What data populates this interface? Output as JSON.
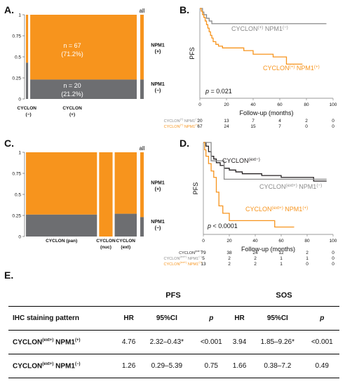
{
  "colors": {
    "orange": "#f7941d",
    "gray": "#6d6e71",
    "light_gray": "#a7a9ac",
    "black": "#231f20"
  },
  "panel_labels": {
    "a": "A.",
    "b": "B.",
    "c": "C.",
    "d": "D.",
    "e": "E."
  },
  "chart_data": [
    {
      "id": "A",
      "type": "mosaic",
      "ylim": [
        0,
        1
      ],
      "yticks": [
        "0",
        "0.25",
        "0.5",
        "0.75",
        "1"
      ],
      "columns": [
        {
          "label": "CYCLON",
          "sub": "(−)",
          "width_share": 0.02,
          "npm1_neg_fraction": 0.43
        },
        {
          "label": "CYCLON",
          "sub": "(+)",
          "width_share": 0.98,
          "npm1_neg_fraction": 0.23
        }
      ],
      "all_label": "all",
      "all_npm1_neg_fraction": 0.23,
      "row_labels": [
        {
          "line1": "NPM1",
          "line2": "(+)"
        },
        {
          "line1": "NPM1",
          "line2": "(−)"
        }
      ],
      "annotations": [
        {
          "line1": "n = 67",
          "line2": "(71.2%)"
        },
        {
          "line1": "n = 20",
          "line2": "(21.2%)"
        }
      ]
    },
    {
      "id": "B",
      "type": "line",
      "ylabel": "PFS",
      "xlabel": "Follow-up (months)",
      "xticks": [
        "0",
        "20",
        "40",
        "60",
        "80",
        "100"
      ],
      "xlim": [
        0,
        100
      ],
      "ylim": [
        0,
        1
      ],
      "pvalue": "p = 0.021",
      "series": [
        {
          "name": "CYCLON(+) NPM1(−)",
          "color": "#8a8a8a",
          "x": [
            0,
            2,
            3,
            5,
            7,
            9,
            95
          ],
          "y": [
            1,
            0.96,
            0.93,
            0.89,
            0.86,
            0.83,
            0.83
          ]
        },
        {
          "name": "CYCLON(+) NPM1(+)",
          "color": "#f7941d",
          "x": [
            0,
            1,
            2,
            3,
            4,
            5,
            6,
            7,
            8,
            9,
            10,
            12,
            14,
            17,
            22,
            28,
            33,
            40,
            48,
            55,
            60,
            65,
            70,
            77
          ],
          "y": [
            1,
            0.97,
            0.93,
            0.9,
            0.86,
            0.82,
            0.78,
            0.74,
            0.7,
            0.67,
            0.63,
            0.6,
            0.58,
            0.56,
            0.56,
            0.56,
            0.53,
            0.49,
            0.49,
            0.46,
            0.46,
            0.38,
            0.38,
            0.38
          ]
        }
      ],
      "risk_table": {
        "rows": [
          {
            "pre": "CYCLON",
            "s1": "(+)",
            "mid": " NPM1",
            "s2": "(−)",
            "color": "#8a8a8a",
            "values": [
              "20",
              "13",
              "7",
              "4",
              "2",
              "0"
            ]
          },
          {
            "pre": "CYCLON",
            "s1": "(+)",
            "mid": " NPM1",
            "s2": "(+)",
            "color": "#f7941d",
            "values": [
              "67",
              "24",
              "15",
              "7",
              "0",
              "0"
            ]
          }
        ]
      }
    },
    {
      "id": "C",
      "type": "mosaic",
      "ylim": [
        0,
        1
      ],
      "yticks": [
        "0",
        "0.25",
        "0.5",
        "0.75",
        "1"
      ],
      "columns": [
        {
          "label": "CYCLON",
          "sub": "(pan)",
          "width_share": 0.58,
          "npm1_neg_fraction": 0.26
        },
        {
          "label": "CYCLON",
          "sub": "(nuc)",
          "width_share": 0.11,
          "npm1_neg_fraction": 0.0
        },
        {
          "label": "CYCLON",
          "sub": "(ext)",
          "width_share": 0.18,
          "npm1_neg_fraction": 0.27
        }
      ],
      "all_label": "all",
      "all_npm1_neg_fraction": 0.23,
      "row_labels": [
        {
          "line1": "NPM1",
          "line2": "(+)"
        },
        {
          "line1": "NPM1",
          "line2": "(−)"
        }
      ]
    },
    {
      "id": "D",
      "type": "line",
      "ylabel": "PFS",
      "xlabel": "Follow-up (months)",
      "xticks": [
        "0",
        "20",
        "40",
        "60",
        "80",
        "100"
      ],
      "xlim": [
        0,
        100
      ],
      "ylim": [
        0,
        1
      ],
      "pvalue": "p < 0.0001",
      "series": [
        {
          "name": "CYCLON(ext−)",
          "color": "#231f20",
          "x": [
            0,
            2,
            4,
            6,
            8,
            10,
            13,
            16,
            20,
            25,
            30,
            38,
            45,
            60,
            75,
            85,
            95
          ],
          "y": [
            1,
            0.96,
            0.9,
            0.85,
            0.82,
            0.78,
            0.75,
            0.72,
            0.7,
            0.68,
            0.66,
            0.66,
            0.64,
            0.62,
            0.62,
            0.58,
            0.58
          ]
        },
        {
          "name": "CYCLON(ext+) NPM1(−)",
          "color": "#8a8a8a",
          "x": [
            0,
            6,
            16,
            95
          ],
          "y": [
            1,
            0.8,
            0.6,
            0.6
          ]
        },
        {
          "name": "CYCLON(ext+) NPM1(+)",
          "color": "#f7941d",
          "x": [
            0,
            1,
            2,
            4,
            6,
            8,
            10,
            12,
            15,
            20,
            52,
            55,
            70
          ],
          "y": [
            1,
            0.92,
            0.85,
            0.77,
            0.69,
            0.62,
            0.46,
            0.31,
            0.23,
            0.15,
            0.15,
            0.08,
            0.08
          ]
        }
      ],
      "risk_table": {
        "rows": [
          {
            "pre": "CYCLON",
            "s1": "(ext−)",
            "mid": "",
            "s2": "",
            "color": "#231f20",
            "values": [
              "79",
              "38",
              "24",
              "12",
              "2",
              "0"
            ]
          },
          {
            "pre": "CYCLON",
            "s1": "(ext+)",
            "mid": " NPM1",
            "s2": "(−)",
            "color": "#8a8a8a",
            "values": [
              "5",
              "2",
              "2",
              "1",
              "1",
              "0"
            ]
          },
          {
            "pre": "CYCLON",
            "s1": "(ext+)",
            "mid": " NPM1",
            "s2": "(+)",
            "color": "#f7941d",
            "values": [
              "13",
              "2",
              "2",
              "1",
              "0",
              "0"
            ]
          }
        ]
      }
    },
    {
      "id": "E",
      "type": "table",
      "group_headers": [
        "PFS",
        "SOS"
      ],
      "columns": [
        "IHC staining pattern",
        "HR",
        "95%CI",
        "p",
        "HR",
        "95%CI",
        "p"
      ],
      "rows": [
        {
          "pre": "CYCLON",
          "s1": "(ext+)",
          "mid": " NPM1",
          "s2": "(+)",
          "values": [
            "4.76",
            "2.32–0.43*",
            "<0.001",
            "3.94",
            "1.85–9.26*",
            "<0.001"
          ]
        },
        {
          "pre": "CYCLON",
          "s1": "(ext+)",
          "mid": " NPM1",
          "s2": "(−)",
          "values": [
            "1.26",
            "0.29–5.39",
            "0.75",
            "1.66",
            "0.38–7.2",
            "0.49"
          ]
        }
      ]
    }
  ]
}
